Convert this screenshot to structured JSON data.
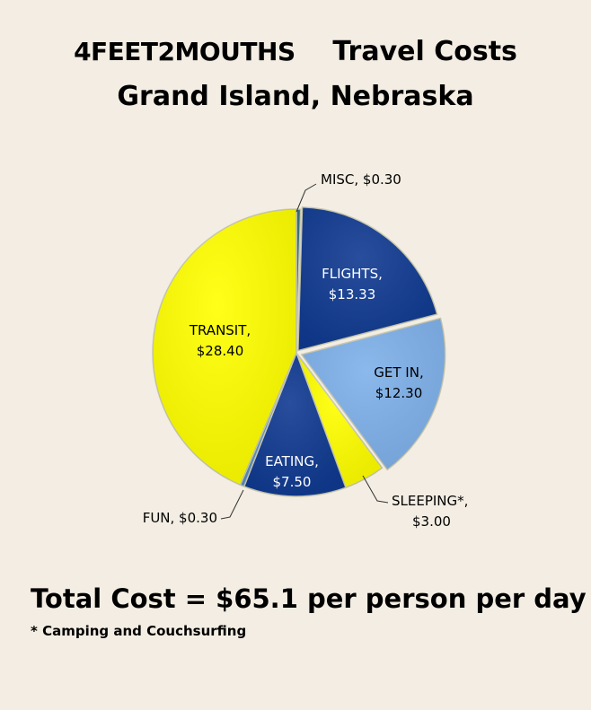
{
  "header": {
    "brand": "4FEET2MOUTHS",
    "title": "Travel Costs",
    "subtitle": "Grand Island, Nebraska"
  },
  "chart_data": {
    "type": "pie",
    "title": "4FEET2MOUTHS    Travel Costs",
    "subtitle": "Grand Island, Nebraska",
    "slices": [
      {
        "label": "MISC",
        "value": 0.3,
        "display": "$0.30",
        "color": "#2f6b6f"
      },
      {
        "label": "FLIGHTS",
        "value": 13.33,
        "display": "$13.33",
        "color": "#103a91"
      },
      {
        "label": "GET IN",
        "value": 12.3,
        "display": "$12.30",
        "color": "#7fb1ea"
      },
      {
        "label": "SLEEPING*",
        "value": 3.0,
        "display": "$3.00",
        "color": "#ffff00"
      },
      {
        "label": "EATING",
        "value": 7.5,
        "display": "$7.50",
        "color": "#103a91"
      },
      {
        "label": "FUN",
        "value": 0.3,
        "display": "$0.30",
        "color": "#5a8fbf"
      },
      {
        "label": "TRANSIT",
        "value": 28.4,
        "display": "$28.40",
        "color": "#ffff00"
      }
    ],
    "legend": "none"
  },
  "footer": {
    "total": "Total Cost = $65.1 per person per day",
    "note": "* Camping and Couchsurfing"
  }
}
